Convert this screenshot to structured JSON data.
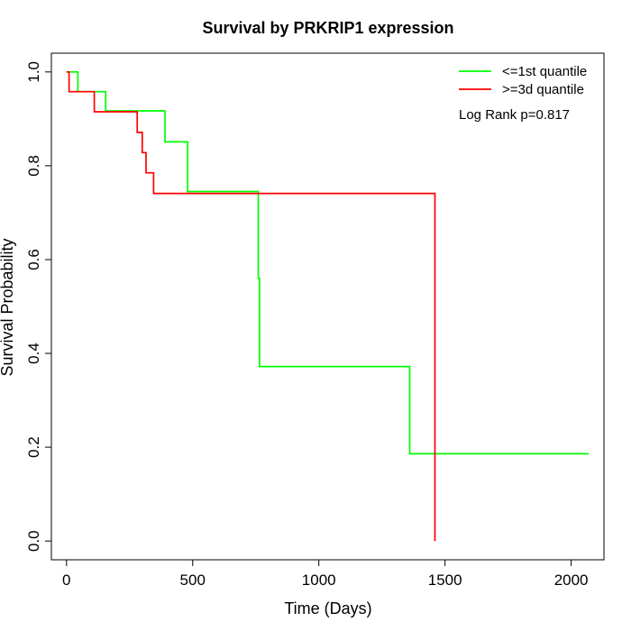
{
  "chart_data": {
    "type": "line",
    "title": "Survival by PRKRIP1 expression",
    "xlabel": "Time (Days)",
    "ylabel": "Survival Probability",
    "xlim": [
      -60,
      2130
    ],
    "ylim": [
      -0.04,
      1.04
    ],
    "x_ticks": [
      0,
      500,
      1000,
      1500,
      2000
    ],
    "y_ticks": [
      0.0,
      0.2,
      0.4,
      0.6,
      0.8,
      1.0
    ],
    "x_tick_labels": [
      "0",
      "500",
      "1000",
      "1500",
      "2000"
    ],
    "y_tick_labels": [
      "0.0",
      "0.2",
      "0.4",
      "0.6",
      "0.8",
      "1.0"
    ],
    "grid": false,
    "legend_position": "top-right",
    "annotation": "Log Rank p=0.817",
    "series": [
      {
        "name": "<=1st quantile",
        "color": "#00ff00",
        "step": true,
        "x": [
          0,
          45,
          45,
          155,
          155,
          390,
          390,
          480,
          480,
          760,
          760,
          765,
          765,
          1360,
          1360,
          2070
        ],
        "y": [
          1.0,
          1.0,
          0.958,
          0.958,
          0.917,
          0.917,
          0.851,
          0.851,
          0.745,
          0.745,
          0.56,
          0.56,
          0.372,
          0.372,
          0.186,
          0.186
        ]
      },
      {
        "name": ">=3d quantile",
        "color": "#ff0000",
        "step": true,
        "x": [
          0,
          10,
          10,
          110,
          110,
          280,
          280,
          300,
          300,
          315,
          315,
          345,
          345,
          1460,
          1460
        ],
        "y": [
          1.0,
          1.0,
          0.958,
          0.958,
          0.915,
          0.915,
          0.871,
          0.871,
          0.828,
          0.828,
          0.785,
          0.785,
          0.741,
          0.741,
          0.0
        ]
      }
    ]
  }
}
